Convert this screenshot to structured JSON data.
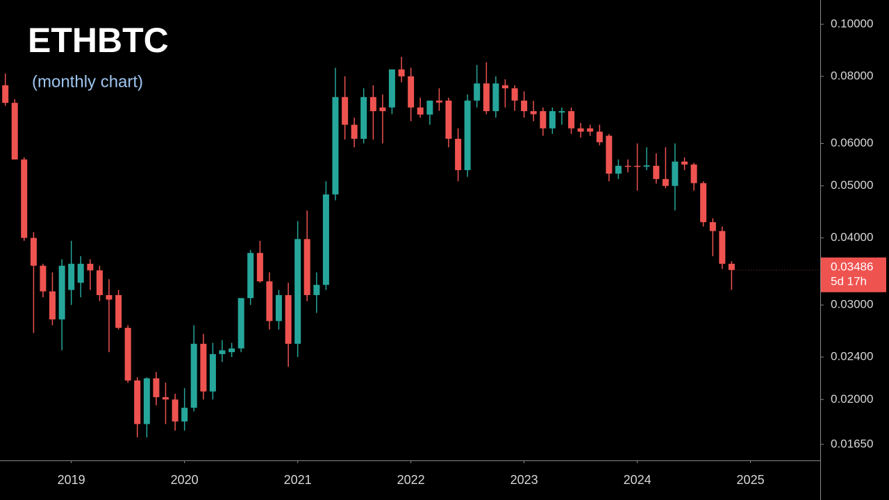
{
  "chart_data": {
    "type": "candlestick",
    "title": "ETHBTC",
    "subtitle": "(monthly chart)",
    "log_scale": true,
    "grid": false,
    "up_color": "#26a69a",
    "down_color": "#ef5350",
    "countdown": "5d 17h",
    "xlim": [
      2018.37,
      2025.61
    ],
    "xticks": [
      2019,
      2020,
      2021,
      2022,
      2023,
      2024,
      2025
    ],
    "ylim": [
      0.0154,
      0.111
    ],
    "yticks": [
      {
        "value": 0.0165,
        "label": "0.01650"
      },
      {
        "value": 0.02,
        "label": "0.02000"
      },
      {
        "value": 0.024,
        "label": "0.02400"
      },
      {
        "value": 0.03,
        "label": "0.03000"
      },
      {
        "value": 0.04,
        "label": "0.04000"
      },
      {
        "value": 0.05,
        "label": "0.05000"
      },
      {
        "value": 0.06,
        "label": "0.06000"
      },
      {
        "value": 0.08,
        "label": "0.08000"
      },
      {
        "value": 0.1,
        "label": "0.10000"
      }
    ],
    "x": [
      2018.417,
      2018.5,
      2018.583,
      2018.667,
      2018.75,
      2018.833,
      2018.917,
      2019,
      2019.083,
      2019.167,
      2019.25,
      2019.333,
      2019.417,
      2019.5,
      2019.583,
      2019.667,
      2019.75,
      2019.833,
      2019.917,
      2020,
      2020.083,
      2020.167,
      2020.25,
      2020.333,
      2020.417,
      2020.5,
      2020.583,
      2020.667,
      2020.75,
      2020.833,
      2020.917,
      2021,
      2021.083,
      2021.167,
      2021.25,
      2021.333,
      2021.417,
      2021.5,
      2021.583,
      2021.667,
      2021.75,
      2021.833,
      2021.917,
      2022,
      2022.083,
      2022.167,
      2022.25,
      2022.333,
      2022.417,
      2022.5,
      2022.583,
      2022.667,
      2022.75,
      2022.833,
      2022.917,
      2023,
      2023.083,
      2023.167,
      2023.25,
      2023.333,
      2023.417,
      2023.5,
      2023.583,
      2023.667,
      2023.75,
      2023.833,
      2023.917,
      2024,
      2024.083,
      2024.167,
      2024.25,
      2024.333,
      2024.417,
      2024.5,
      2024.583,
      2024.667,
      2024.75,
      2024.833
    ],
    "open": [
      0.077,
      0.0714,
      0.056,
      0.04,
      0.0355,
      0.0318,
      0.0282,
      0.032,
      0.033,
      0.0358,
      0.0348,
      0.0313,
      0.0313,
      0.0272,
      0.0217,
      0.018,
      0.0219,
      0.0202,
      0.02,
      0.0182,
      0.0193,
      0.0254,
      0.0207,
      0.0243,
      0.0245,
      0.0249,
      0.0309,
      0.0375,
      0.0332,
      0.028,
      0.0313,
      0.0254,
      0.0398,
      0.0313,
      0.0327,
      0.0482,
      0.0732,
      0.065,
      0.0612,
      0.0732,
      0.07,
      0.07,
      0.0824,
      0.08,
      0.07,
      0.0679,
      0.0721,
      0.0721,
      0.0612,
      0.0535,
      0.0721,
      0.0776,
      0.0689,
      0.077,
      0.076,
      0.0721,
      0.0689,
      0.0689,
      0.064,
      0.0685,
      0.0689,
      0.064,
      0.064,
      0.0631,
      0.062,
      0.0527,
      0.0545,
      0.0545,
      0.0543,
      0.0545,
      0.0515,
      0.05,
      0.0555,
      0.0548,
      0.0506,
      0.0428,
      0.0412,
      0.0358
    ],
    "high": [
      0.081,
      0.0725,
      0.0565,
      0.041,
      0.0358,
      0.0345,
      0.0365,
      0.0395,
      0.037,
      0.0365,
      0.0355,
      0.0335,
      0.032,
      0.0275,
      0.022,
      0.022,
      0.0225,
      0.0215,
      0.0205,
      0.021,
      0.0275,
      0.0265,
      0.0255,
      0.0258,
      0.0255,
      0.0305,
      0.038,
      0.0395,
      0.0345,
      0.032,
      0.033,
      0.043,
      0.045,
      0.0345,
      0.051,
      0.083,
      0.08,
      0.067,
      0.076,
      0.077,
      0.074,
      0.082,
      0.087,
      0.083,
      0.073,
      0.072,
      0.076,
      0.073,
      0.064,
      0.074,
      0.084,
      0.085,
      0.08,
      0.079,
      0.077,
      0.075,
      0.072,
      0.07,
      0.07,
      0.07,
      0.07,
      0.0655,
      0.065,
      0.065,
      0.0625,
      0.056,
      0.056,
      0.06,
      0.059,
      0.0575,
      0.059,
      0.06,
      0.0565,
      0.0552,
      0.051,
      0.0435,
      0.042,
      0.0362
    ],
    "low": [
      0.0705,
      0.056,
      0.0395,
      0.0266,
      0.031,
      0.0275,
      0.0247,
      0.03,
      0.031,
      0.032,
      0.0305,
      0.0245,
      0.027,
      0.0215,
      0.017,
      0.017,
      0.0195,
      0.018,
      0.0175,
      0.0175,
      0.019,
      0.02,
      0.02,
      0.0235,
      0.024,
      0.0245,
      0.03,
      0.033,
      0.027,
      0.027,
      0.023,
      0.024,
      0.0305,
      0.029,
      0.032,
      0.047,
      0.061,
      0.059,
      0.06,
      0.061,
      0.06,
      0.068,
      0.078,
      0.066,
      0.067,
      0.065,
      0.069,
      0.059,
      0.051,
      0.052,
      0.07,
      0.068,
      0.067,
      0.07,
      0.069,
      0.067,
      0.066,
      0.062,
      0.0625,
      0.065,
      0.0625,
      0.0615,
      0.062,
      0.0595,
      0.051,
      0.0515,
      0.053,
      0.049,
      0.0535,
      0.0505,
      0.0495,
      0.045,
      0.0535,
      0.049,
      0.042,
      0.037,
      0.035,
      0.032
    ],
    "close": [
      0.0714,
      0.056,
      0.04,
      0.0355,
      0.0318,
      0.0282,
      0.0355,
      0.0358,
      0.0358,
      0.0348,
      0.0313,
      0.0307,
      0.0272,
      0.0217,
      0.018,
      0.0219,
      0.0202,
      0.02,
      0.0182,
      0.0193,
      0.0254,
      0.0207,
      0.0243,
      0.0247,
      0.0249,
      0.0309,
      0.0375,
      0.0332,
      0.028,
      0.0313,
      0.0254,
      0.0398,
      0.0313,
      0.0327,
      0.0482,
      0.0732,
      0.065,
      0.0612,
      0.0732,
      0.0689,
      0.0689,
      0.0824,
      0.08,
      0.07,
      0.0679,
      0.0721,
      0.0715,
      0.0612,
      0.0535,
      0.0721,
      0.0776,
      0.0689,
      0.0776,
      0.076,
      0.0721,
      0.0689,
      0.068,
      0.064,
      0.0689,
      0.0689,
      0.064,
      0.0631,
      0.0631,
      0.0603,
      0.0527,
      0.0545,
      0.0543,
      0.0543,
      0.0546,
      0.0515,
      0.05,
      0.0555,
      0.0548,
      0.0506,
      0.0428,
      0.0412,
      0.0358,
      0.03486
    ]
  }
}
